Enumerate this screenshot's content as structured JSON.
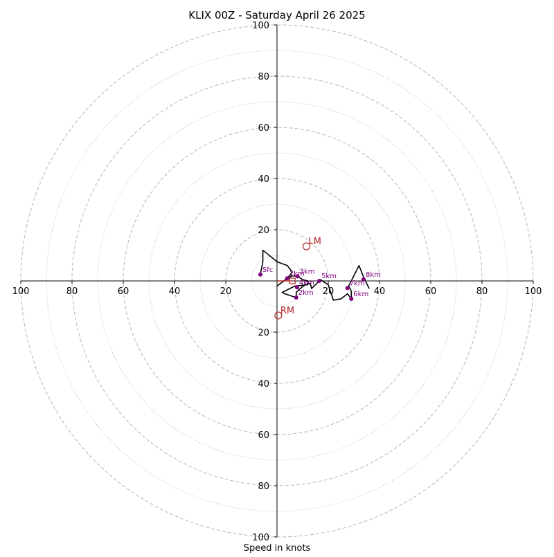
{
  "chart_data": {
    "type": "hodograph",
    "title": "KLIX 00Z - Saturday April 26 2025",
    "xlabel": "Speed in knots",
    "range": 100,
    "major_rings": [
      20,
      40,
      60,
      80,
      100
    ],
    "minor_rings": [
      10,
      30,
      50,
      70,
      90
    ],
    "x_ticks": [
      {
        "value": -100,
        "label": "100"
      },
      {
        "value": -80,
        "label": "80"
      },
      {
        "value": -60,
        "label": "60"
      },
      {
        "value": -40,
        "label": "40"
      },
      {
        "value": -20,
        "label": "20"
      },
      {
        "value": 20,
        "label": "20"
      },
      {
        "value": 40,
        "label": "40"
      },
      {
        "value": 60,
        "label": "60"
      },
      {
        "value": 80,
        "label": "80"
      },
      {
        "value": 100,
        "label": "100"
      }
    ],
    "y_ticks": [
      {
        "value": 100,
        "label": "100"
      },
      {
        "value": 80,
        "label": "80"
      },
      {
        "value": 60,
        "label": "60"
      },
      {
        "value": 40,
        "label": "40"
      },
      {
        "value": 20,
        "label": "20"
      },
      {
        "value": -20,
        "label": "20"
      },
      {
        "value": -40,
        "label": "40"
      },
      {
        "value": -60,
        "label": "60"
      },
      {
        "value": -80,
        "label": "80"
      },
      {
        "value": -100,
        "label": "100"
      }
    ],
    "trace": [
      [
        -6.5,
        2.5
      ],
      [
        -5.5,
        7.5
      ],
      [
        -5.5,
        12
      ],
      [
        0,
        7.5
      ],
      [
        4,
        6
      ],
      [
        6,
        3.5
      ],
      [
        4,
        1
      ],
      [
        0,
        -2
      ],
      [
        4,
        1
      ],
      [
        6,
        2
      ],
      [
        8,
        1.8
      ],
      [
        10,
        0.5
      ],
      [
        12,
        0
      ],
      [
        12,
        -1.5
      ],
      [
        7,
        -2
      ],
      [
        2,
        -4.5
      ],
      [
        3,
        -5
      ],
      [
        7.5,
        -6.5
      ],
      [
        7.5,
        -4.5
      ],
      [
        9,
        -3
      ],
      [
        11,
        -1.5
      ],
      [
        13,
        -1
      ],
      [
        13.5,
        -3
      ],
      [
        16,
        -0.5
      ],
      [
        17,
        0.5
      ],
      [
        18,
        -0.2
      ],
      [
        20,
        -1.5
      ],
      [
        22,
        -7.5
      ],
      [
        25,
        -7
      ],
      [
        27.5,
        -5
      ],
      [
        29,
        -7
      ],
      [
        29,
        -4
      ],
      [
        28,
        -2
      ],
      [
        32,
        6
      ],
      [
        34,
        1
      ],
      [
        36,
        -3
      ]
    ],
    "height_markers": [
      {
        "label": "Sfc",
        "u": -6.5,
        "v": 2.5
      },
      {
        "label": "1km",
        "u": 4,
        "v": 1
      },
      {
        "label": "2km",
        "u": 7.5,
        "v": -6.5
      },
      {
        "label": "3km",
        "u": 8,
        "v": 1.8
      },
      {
        "label": "4km",
        "u": 7.8,
        "v": -2.5
      },
      {
        "label": "5km",
        "u": 16.5,
        "v": 0
      },
      {
        "label": "6km",
        "u": 29,
        "v": -7
      },
      {
        "label": "7km",
        "u": 27.5,
        "v": -2.8
      },
      {
        "label": "8km",
        "u": 33.8,
        "v": 0.6
      }
    ],
    "storm_motion": [
      {
        "label": "LM",
        "u": 11.5,
        "v": 13.5
      },
      {
        "label": "RM",
        "u": 0.5,
        "v": -13.5
      }
    ],
    "mean_wind": {
      "u": 6,
      "v": 0
    },
    "colors": {
      "trace": "#000000",
      "markers": "#800080",
      "storm_motion": "#b22222",
      "rings": "#bbbbbb",
      "axes": "#000000"
    }
  }
}
